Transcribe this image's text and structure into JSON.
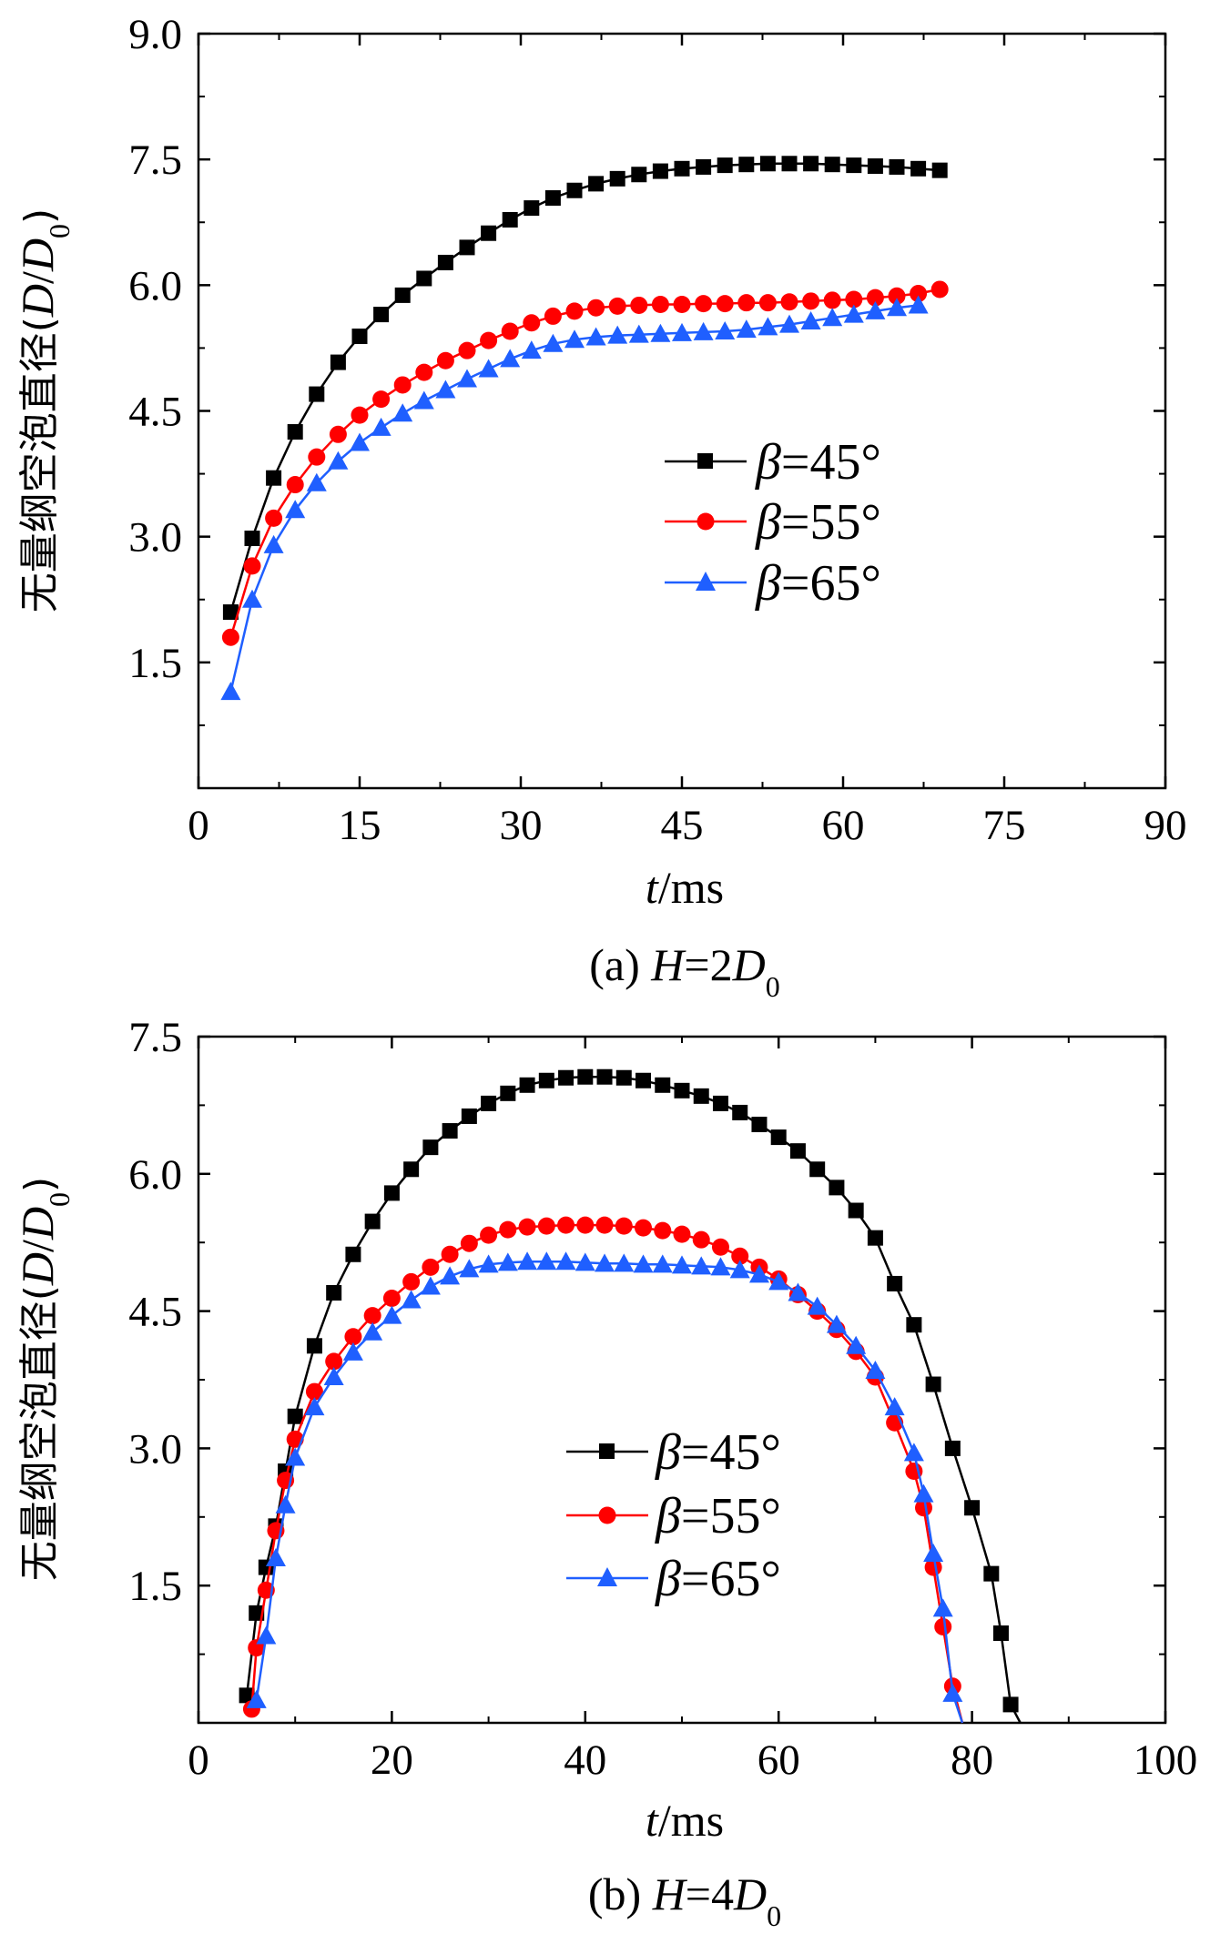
{
  "chart_data": [
    {
      "type": "line",
      "caption": "(a) H=2D0",
      "caption_parts": {
        "prefix": "(a) ",
        "var": "H",
        "eq": "=2",
        "sym": "D",
        "sub": "0"
      },
      "xlabel": {
        "var": "t",
        "unit": "/ms"
      },
      "ylabel": {
        "text": "无量纲空泡直径(",
        "var1": "D",
        "slash": "/",
        "var2": "D",
        "sub": "0",
        "close": ")"
      },
      "xlim": [
        0,
        90
      ],
      "ylim": [
        0,
        9.0
      ],
      "xticks": [
        0,
        15,
        30,
        45,
        60,
        75,
        90
      ],
      "xtick_labels": [
        "0",
        "15",
        "30",
        "45",
        "60",
        "75",
        "90"
      ],
      "yticks": [
        1.5,
        3.0,
        4.5,
        6.0,
        7.5,
        9.0
      ],
      "ytick_labels": [
        "1.5",
        "3.0",
        "4.5",
        "6.0",
        "7.5",
        "9.0"
      ],
      "legend_position": "center-right",
      "series": [
        {
          "name": "β=45°",
          "parts": {
            "sym": "β",
            "rest": "=45°"
          },
          "color": "#000000",
          "marker": "square",
          "x": [
            3,
            5,
            7,
            9,
            11,
            13,
            15,
            17,
            19,
            21,
            23,
            25,
            27,
            29,
            31,
            33,
            35,
            37,
            39,
            41,
            43,
            45,
            47,
            49,
            51,
            53,
            55,
            57,
            59,
            61,
            63,
            65,
            67,
            69
          ],
          "y": [
            2.1,
            2.98,
            3.7,
            4.25,
            4.7,
            5.08,
            5.39,
            5.65,
            5.88,
            6.08,
            6.27,
            6.45,
            6.62,
            6.78,
            6.92,
            7.04,
            7.13,
            7.21,
            7.27,
            7.32,
            7.36,
            7.39,
            7.41,
            7.43,
            7.44,
            7.45,
            7.45,
            7.45,
            7.44,
            7.43,
            7.42,
            7.41,
            7.39,
            7.37
          ]
        },
        {
          "name": "β=55°",
          "parts": {
            "sym": "β",
            "rest": "=55°"
          },
          "color": "#ff0000",
          "marker": "circle",
          "x": [
            3,
            5,
            7,
            9,
            11,
            13,
            15,
            17,
            19,
            21,
            23,
            25,
            27,
            29,
            31,
            33,
            35,
            37,
            39,
            41,
            43,
            45,
            47,
            49,
            51,
            53,
            55,
            57,
            59,
            61,
            63,
            65,
            67,
            69
          ],
          "y": [
            1.8,
            2.65,
            3.22,
            3.62,
            3.95,
            4.22,
            4.45,
            4.64,
            4.81,
            4.96,
            5.1,
            5.22,
            5.34,
            5.45,
            5.55,
            5.63,
            5.69,
            5.73,
            5.75,
            5.76,
            5.77,
            5.77,
            5.78,
            5.78,
            5.79,
            5.79,
            5.8,
            5.81,
            5.82,
            5.83,
            5.85,
            5.87,
            5.9,
            5.95
          ]
        },
        {
          "name": "β=65°",
          "parts": {
            "sym": "β",
            "rest": "=65°"
          },
          "color": "#1f5fff",
          "marker": "triangle",
          "x": [
            3,
            5,
            7,
            9,
            11,
            13,
            15,
            17,
            19,
            21,
            23,
            25,
            27,
            29,
            31,
            33,
            35,
            37,
            39,
            41,
            43,
            45,
            47,
            49,
            51,
            53,
            55,
            57,
            59,
            61,
            63,
            65,
            67
          ],
          "y": [
            1.15,
            2.25,
            2.9,
            3.32,
            3.64,
            3.9,
            4.12,
            4.3,
            4.47,
            4.62,
            4.75,
            4.88,
            5.0,
            5.12,
            5.22,
            5.3,
            5.35,
            5.38,
            5.4,
            5.41,
            5.42,
            5.43,
            5.44,
            5.45,
            5.47,
            5.5,
            5.53,
            5.57,
            5.61,
            5.65,
            5.69,
            5.73,
            5.76
          ]
        }
      ]
    },
    {
      "type": "line",
      "caption": "(b) H=4D0",
      "caption_parts": {
        "prefix": "(b) ",
        "var": "H",
        "eq": "=4",
        "sym": "D",
        "sub": "0"
      },
      "xlabel": {
        "var": "t",
        "unit": "/ms"
      },
      "ylabel": {
        "text": "无量纲空泡直径(",
        "var1": "D",
        "slash": "/",
        "var2": "D",
        "sub": "0",
        "close": ")"
      },
      "xlim": [
        0,
        100
      ],
      "ylim": [
        0,
        7.5
      ],
      "xticks": [
        0,
        20,
        40,
        60,
        80,
        100
      ],
      "xtick_labels": [
        "0",
        "20",
        "40",
        "60",
        "80",
        "100"
      ],
      "yticks": [
        1.5,
        3.0,
        4.5,
        6.0,
        7.5
      ],
      "ytick_labels": [
        "1.5",
        "3.0",
        "4.5",
        "6.0",
        "7.5"
      ],
      "legend_position": "bottom-center",
      "series": [
        {
          "name": "β=45°",
          "parts": {
            "sym": "β",
            "rest": "=45°"
          },
          "color": "#000000",
          "marker": "square",
          "x": [
            5,
            6,
            7,
            8,
            9,
            10,
            12,
            14,
            16,
            18,
            20,
            22,
            24,
            26,
            28,
            30,
            32,
            34,
            36,
            38,
            40,
            42,
            44,
            46,
            48,
            50,
            52,
            54,
            56,
            58,
            60,
            62,
            64,
            66,
            68,
            70,
            72,
            74,
            76,
            78,
            80,
            82,
            83,
            84,
            85,
            86
          ],
          "y": [
            0.3,
            1.2,
            1.7,
            2.15,
            2.75,
            3.35,
            4.12,
            4.7,
            5.12,
            5.48,
            5.79,
            6.05,
            6.29,
            6.47,
            6.63,
            6.77,
            6.88,
            6.97,
            7.02,
            7.05,
            7.06,
            7.06,
            7.05,
            7.02,
            6.97,
            6.91,
            6.85,
            6.77,
            6.67,
            6.54,
            6.4,
            6.25,
            6.05,
            5.85,
            5.6,
            5.3,
            4.8,
            4.35,
            3.7,
            3.0,
            2.35,
            1.63,
            0.98,
            0.2,
            0.0,
            0.0
          ]
        },
        {
          "name": "β=55°",
          "parts": {
            "sym": "β",
            "rest": "=55°"
          },
          "color": "#ff0000",
          "marker": "circle",
          "x": [
            5.5,
            6,
            7,
            8,
            9,
            10,
            12,
            14,
            16,
            18,
            20,
            22,
            24,
            26,
            28,
            30,
            32,
            34,
            36,
            38,
            40,
            42,
            44,
            46,
            48,
            50,
            52,
            54,
            56,
            58,
            60,
            62,
            64,
            66,
            68,
            70,
            72,
            74,
            75,
            76,
            77,
            78,
            79,
            80
          ],
          "y": [
            0.15,
            0.82,
            1.45,
            2.1,
            2.65,
            3.1,
            3.62,
            3.95,
            4.22,
            4.45,
            4.64,
            4.82,
            4.98,
            5.12,
            5.24,
            5.33,
            5.39,
            5.42,
            5.43,
            5.44,
            5.44,
            5.44,
            5.43,
            5.41,
            5.38,
            5.34,
            5.28,
            5.2,
            5.1,
            4.98,
            4.85,
            4.68,
            4.5,
            4.3,
            4.06,
            3.78,
            3.28,
            2.75,
            2.35,
            1.7,
            1.05,
            0.4,
            0.0,
            0.0
          ]
        },
        {
          "name": "β=65°",
          "parts": {
            "sym": "β",
            "rest": "=65°"
          },
          "color": "#1f5fff",
          "marker": "triangle",
          "x": [
            6,
            7,
            8,
            9,
            10,
            12,
            14,
            16,
            18,
            20,
            22,
            24,
            26,
            28,
            30,
            32,
            34,
            36,
            38,
            40,
            42,
            44,
            46,
            48,
            50,
            52,
            54,
            56,
            58,
            60,
            62,
            64,
            66,
            68,
            70,
            72,
            74,
            75,
            76,
            77,
            78,
            79
          ],
          "y": [
            0.25,
            0.95,
            1.8,
            2.38,
            2.9,
            3.45,
            3.78,
            4.05,
            4.27,
            4.45,
            4.62,
            4.77,
            4.88,
            4.96,
            5.01,
            5.03,
            5.04,
            5.04,
            5.04,
            5.03,
            5.02,
            5.02,
            5.01,
            5.01,
            5.0,
            4.99,
            4.98,
            4.95,
            4.9,
            4.82,
            4.7,
            4.55,
            4.35,
            4.12,
            3.85,
            3.45,
            2.95,
            2.5,
            1.85,
            1.25,
            0.32,
            0.0
          ]
        }
      ]
    }
  ]
}
